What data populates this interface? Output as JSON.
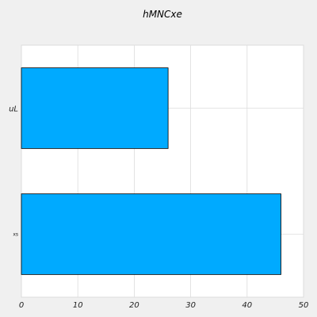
{
  "chart_data": {
    "type": "bar",
    "orientation": "horizontal",
    "title": "hMNCxe",
    "categories": [
      "uL",
      "xs"
    ],
    "values": [
      26,
      46
    ],
    "xlim": [
      0,
      50
    ],
    "xticks": [
      0,
      10,
      20,
      30,
      40,
      50
    ],
    "grid": true,
    "bar_color": "#00aaff",
    "edge_color": "#000000",
    "background": "#f0f0f0",
    "plot_background": "#ffffff"
  }
}
